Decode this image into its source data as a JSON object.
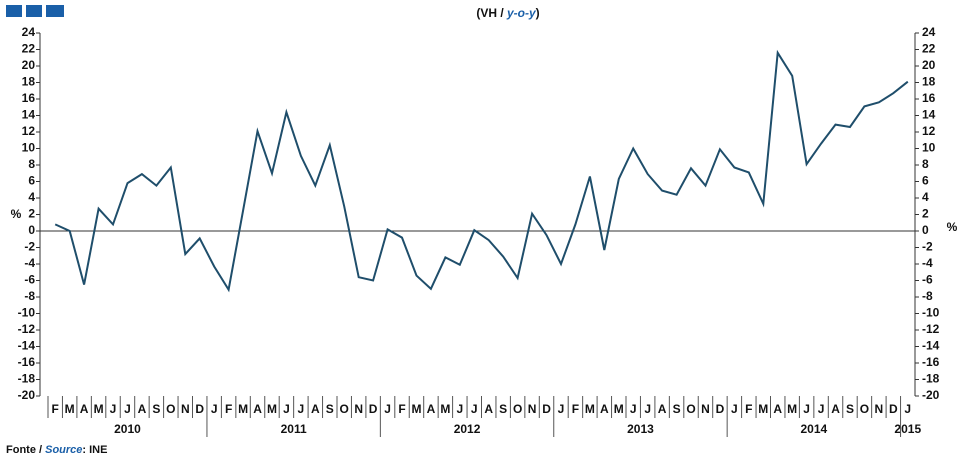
{
  "chart_data": {
    "type": "line",
    "title_parts": [
      "(VH / ",
      "y-o-y",
      ")"
    ],
    "y_label": "%",
    "source_parts": [
      "Fonte / ",
      "Source",
      ": INE"
    ],
    "categories": [
      "F",
      "M",
      "A",
      "M",
      "J",
      "J",
      "A",
      "S",
      "O",
      "N",
      "D",
      "J",
      "F",
      "M",
      "A",
      "M",
      "J",
      "J",
      "A",
      "S",
      "O",
      "N",
      "D",
      "J",
      "F",
      "M",
      "A",
      "M",
      "J",
      "J",
      "A",
      "S",
      "O",
      "N",
      "D",
      "J",
      "F",
      "M",
      "A",
      "M",
      "J",
      "J",
      "A",
      "S",
      "O",
      "N",
      "D",
      "J",
      "F",
      "M",
      "A",
      "M",
      "J",
      "J",
      "A",
      "S",
      "O",
      "N",
      "D",
      "J"
    ],
    "year_labels": [
      "2010",
      "2011",
      "2012",
      "2013",
      "2014",
      "2015"
    ],
    "series": [
      {
        "color": "#1f4e6b",
        "values": [
          0.8,
          0,
          -6.5,
          2.7,
          0.8,
          5.8,
          6.9,
          5.5,
          7.7,
          -2.8,
          -0.9,
          -4.3,
          -7.1,
          2.5,
          12.1,
          7.0,
          14.4,
          9.1,
          5.5,
          10.4,
          3.0,
          -5.6,
          -6.0,
          0.2,
          -0.8,
          -5.4,
          -7.0,
          -3.2,
          -4.1,
          0.1,
          -1.1,
          -3.1,
          -5.7,
          2.1,
          -0.5,
          -4.0,
          0.8,
          6.6,
          -2.3,
          6.3,
          10.0,
          6.9,
          4.9,
          4.4,
          7.6,
          5.5,
          9.9,
          7.7,
          7.1,
          3.3,
          21.6,
          18.8,
          8.1,
          10.6,
          12.9,
          12.6,
          15.1,
          15.6,
          16.7,
          18.1
        ]
      }
    ],
    "ylim": [
      -20,
      24
    ],
    "yticks": [
      -20,
      -18,
      -16,
      -14,
      -12,
      -10,
      -8,
      -6,
      -4,
      -2,
      0,
      2,
      4,
      6,
      8,
      10,
      12,
      14,
      16,
      18,
      20,
      22,
      24
    ]
  }
}
